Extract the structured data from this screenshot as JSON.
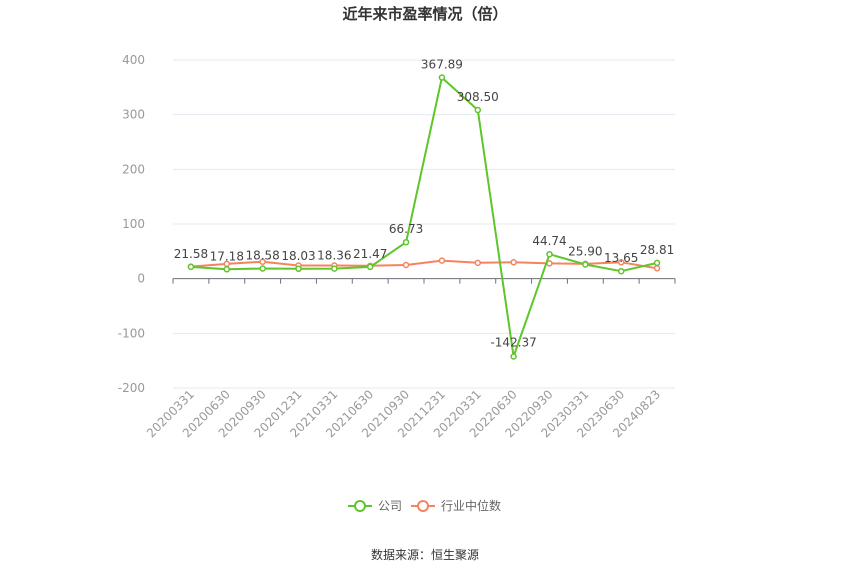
{
  "chart_data": {
    "type": "line",
    "title": "近年来市盈率情况（倍）",
    "categories": [
      "20200331",
      "20200630",
      "20200930",
      "20201231",
      "20210331",
      "20210630",
      "20210930",
      "20211231",
      "20220331",
      "20220630",
      "20220930",
      "20230331",
      "20230630",
      "20240823"
    ],
    "ylim": [
      -200,
      400
    ],
    "yticks": [
      -200,
      -100,
      0,
      100,
      200,
      300,
      400
    ],
    "grid": true,
    "legend_position": "bottom-center",
    "series": [
      {
        "name": "公司",
        "color": "#5ec52a",
        "values": [
          21.58,
          17.18,
          18.58,
          18.03,
          18.36,
          21.47,
          66.73,
          367.89,
          308.5,
          -142.37,
          44.74,
          25.9,
          13.65,
          28.81
        ],
        "labels": [
          "21.58",
          "17.18",
          "18.58",
          "18.03",
          "18.36",
          "21.47",
          "66.73",
          "367.89",
          "308.50",
          "-142.37",
          "44.74",
          "25.90",
          "13.65",
          "28.81"
        ]
      },
      {
        "name": "行业中位数",
        "color": "#f4845f",
        "values": [
          22.0,
          27.0,
          31.0,
          24.0,
          24.0,
          23.5,
          25.0,
          33.0,
          29.0,
          30.0,
          28.0,
          27.0,
          30.0,
          19.0
        ]
      }
    ],
    "source": "数据来源：恒生聚源"
  }
}
